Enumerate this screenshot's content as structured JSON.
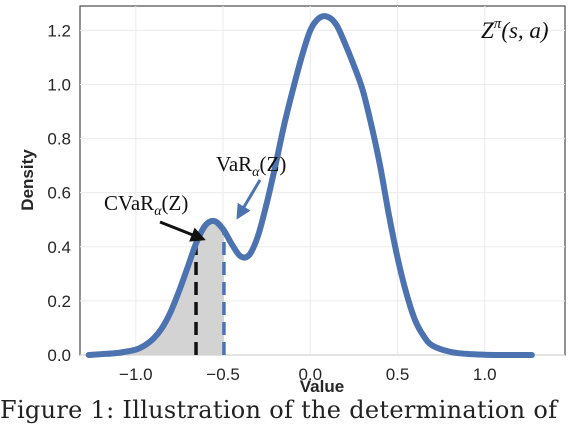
{
  "chart_data": {
    "type": "area",
    "xlabel": "Value",
    "ylabel": "Density",
    "xlim": [
      -1.32,
      1.46
    ],
    "ylim": [
      0,
      1.29
    ],
    "xticks": [
      {
        "value": -1.0,
        "label": "−1.0"
      },
      {
        "value": -0.5,
        "label": "−0.5"
      },
      {
        "value": 0.0,
        "label": "0.0"
      },
      {
        "value": 0.5,
        "label": "0.5"
      },
      {
        "value": 1.0,
        "label": "1.0"
      }
    ],
    "yticks": [
      {
        "value": 0.0,
        "label": "0.0"
      },
      {
        "value": 0.2,
        "label": "0.2"
      },
      {
        "value": 0.4,
        "label": "0.4"
      },
      {
        "value": 0.6,
        "label": "0.6"
      },
      {
        "value": 0.8,
        "label": "0.8"
      },
      {
        "value": 1.0,
        "label": "1.0"
      },
      {
        "value": 1.2,
        "label": "1.2"
      }
    ],
    "grid": true,
    "series": [
      {
        "color": "#4c72b0",
        "x": [
          -1.27,
          -1.2,
          -1.1,
          -1.0,
          -0.95,
          -0.9,
          -0.85,
          -0.8,
          -0.75,
          -0.7,
          -0.65,
          -0.6,
          -0.55,
          -0.5,
          -0.45,
          -0.4,
          -0.35,
          -0.3,
          -0.25,
          -0.2,
          -0.15,
          -0.1,
          -0.05,
          0.0,
          0.05,
          0.1,
          0.15,
          0.2,
          0.25,
          0.3,
          0.35,
          0.4,
          0.45,
          0.5,
          0.55,
          0.6,
          0.65,
          0.7,
          0.8,
          0.9,
          1.0,
          1.1,
          1.2,
          1.27
        ],
        "y": [
          0.0,
          0.003,
          0.008,
          0.02,
          0.035,
          0.06,
          0.1,
          0.16,
          0.24,
          0.33,
          0.42,
          0.48,
          0.495,
          0.465,
          0.41,
          0.365,
          0.37,
          0.44,
          0.56,
          0.7,
          0.85,
          0.98,
          1.1,
          1.2,
          1.245,
          1.25,
          1.22,
          1.15,
          1.07,
          0.98,
          0.85,
          0.7,
          0.52,
          0.36,
          0.23,
          0.13,
          0.07,
          0.035,
          0.012,
          0.004,
          0.001,
          0.0,
          0.0,
          0.0
        ]
      }
    ],
    "shaded_region": {
      "x_start": -1.27,
      "x_end": -0.495,
      "color": "#d3d3d3"
    },
    "vlines": [
      {
        "name": "cvar",
        "x": -0.655,
        "y": 0.405,
        "color": "#111111"
      },
      {
        "name": "var",
        "x": -0.495,
        "y": 0.46,
        "color": "#4c72b0"
      }
    ],
    "annotations": {
      "var_label": {
        "text": "VaR",
        "sub": "α",
        "tail": "(Z)",
        "color": "#4c72b0"
      },
      "cvar_label": {
        "text": "CVaR",
        "sub": "α",
        "tail": "(Z)",
        "color": "#111111"
      },
      "dist_label": {
        "text": "Z",
        "sup": "π",
        "tail": "(s, a)"
      }
    }
  },
  "caption": "Figure 1:  Illustration of the determination of"
}
